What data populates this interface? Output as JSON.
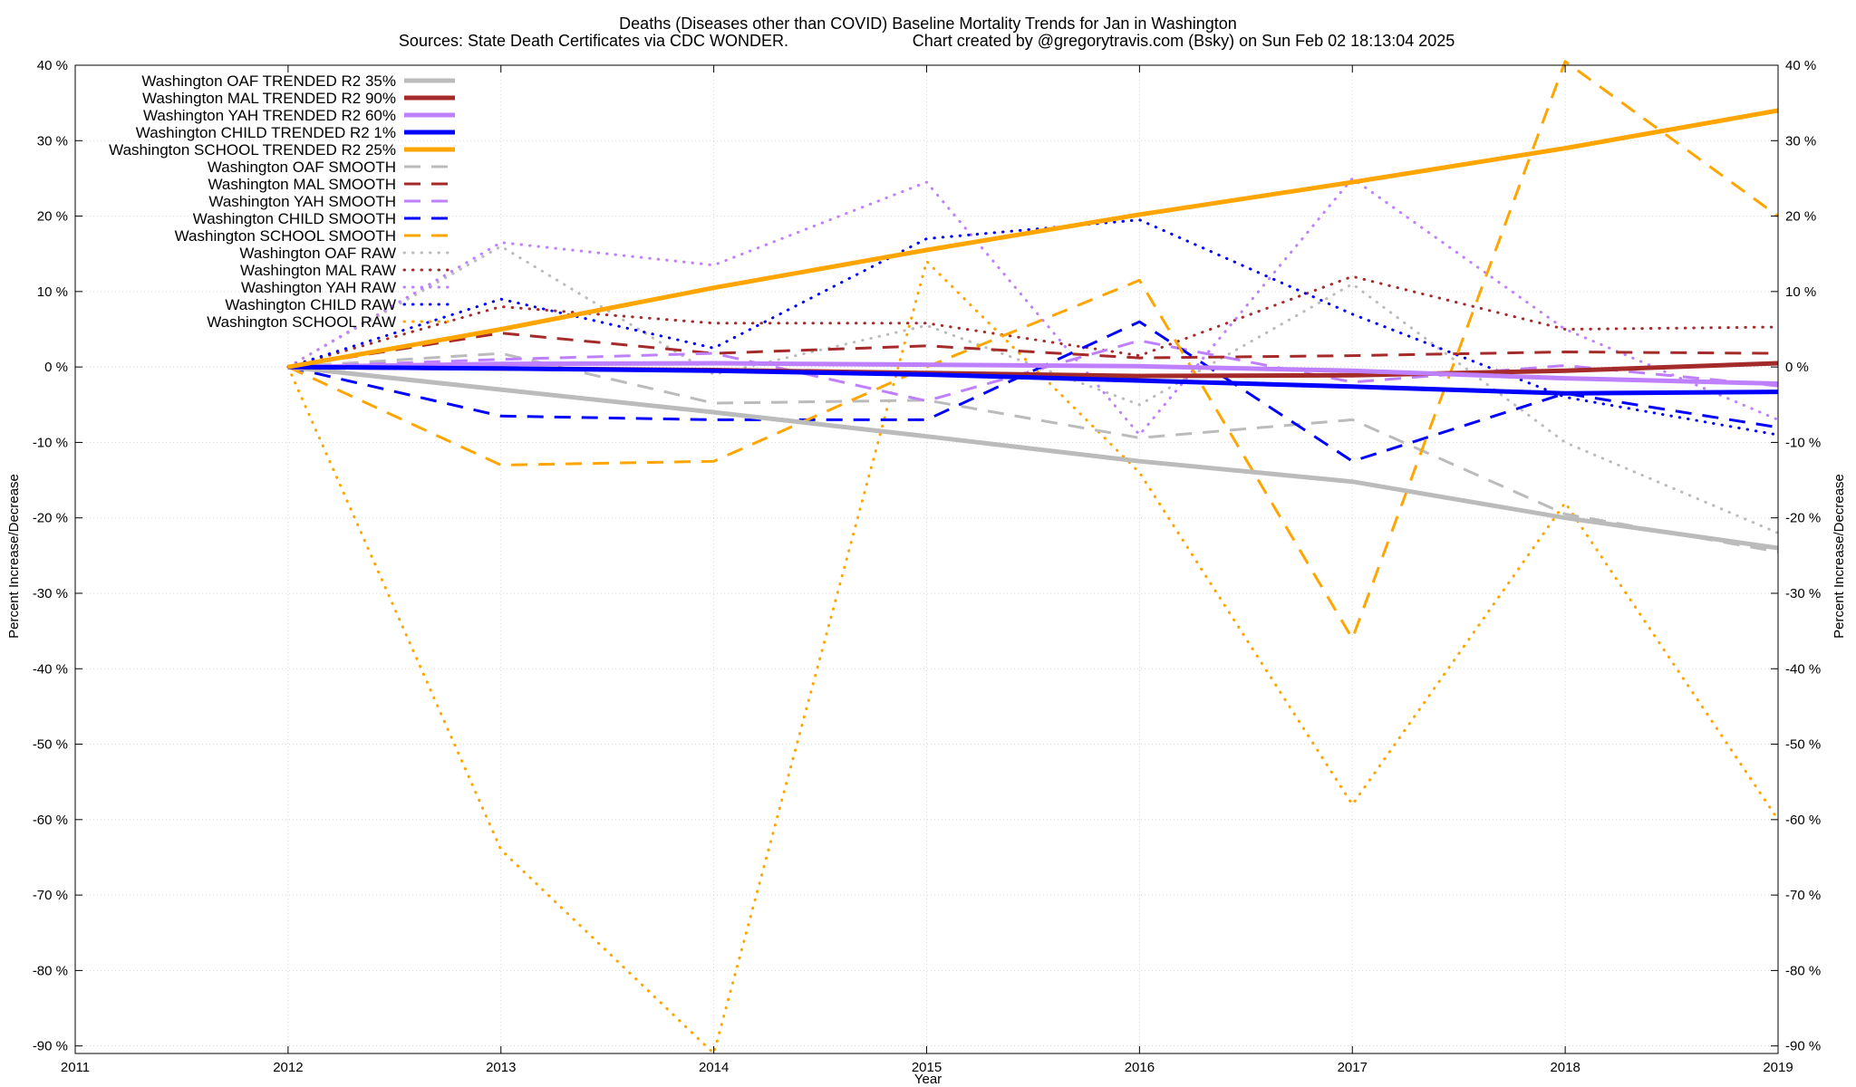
{
  "chart_data": {
    "type": "line",
    "title": "Deaths (Diseases other than COVID)  Baseline Mortality Trends for Jan in Washington",
    "subtitle_left": "Sources: State Death Certificates via CDC WONDER.",
    "subtitle_right": "Chart created by @gregorytravis.com (Bsky) on Sun Feb 02 18:13:04 2025",
    "xlabel": "Year",
    "ylabel_left": "Percent Increase/Decrease",
    "ylabel_right": "Percent Increase/Decrease",
    "xlim": [
      2011,
      2019
    ],
    "ylim": [
      -91,
      40
    ],
    "x_ticks": [
      2011,
      2012,
      2013,
      2014,
      2015,
      2016,
      2017,
      2018,
      2019
    ],
    "y_ticks": [
      {
        "value": 40,
        "label": "40 %"
      },
      {
        "value": 30,
        "label": "30 %"
      },
      {
        "value": 20,
        "label": "20 %"
      },
      {
        "value": 10,
        "label": "10 %"
      },
      {
        "value": 0,
        "label": "0 %"
      },
      {
        "value": -10,
        "label": "-10 %"
      },
      {
        "value": -20,
        "label": "-20 %"
      },
      {
        "value": -30,
        "label": "-30 %"
      },
      {
        "value": -40,
        "label": "-40 %"
      },
      {
        "value": -50,
        "label": "-50 %"
      },
      {
        "value": -60,
        "label": "-60 %"
      },
      {
        "value": -70,
        "label": "-70 %"
      },
      {
        "value": -80,
        "label": "-80 %"
      },
      {
        "value": -90,
        "label": "-90 %"
      }
    ],
    "grid": true,
    "legend_position": "top-left",
    "series": [
      {
        "name": "Washington OAF TRENDED R2  35%",
        "color": "#bbbbbb",
        "style": "solid",
        "x": [
          2012,
          2013,
          2014,
          2015,
          2016,
          2017,
          2018,
          2019
        ],
        "values": [
          0,
          -3,
          -6,
          -9.2,
          -12.5,
          -15.2,
          -20,
          -24
        ]
      },
      {
        "name": "Washington MAL TRENDED R2  90%",
        "color": "#a52a2a",
        "style": "solid",
        "x": [
          2012,
          2013,
          2014,
          2015,
          2016,
          2017,
          2018,
          2019
        ],
        "values": [
          0,
          -0.2,
          -0.4,
          -0.8,
          -1.2,
          -1.1,
          -0.5,
          0.5
        ]
      },
      {
        "name": "Washington YAH TRENDED R2  60%",
        "color": "#bf80ff",
        "style": "solid",
        "x": [
          2012,
          2013,
          2014,
          2015,
          2016,
          2017,
          2018,
          2019
        ],
        "values": [
          0,
          0.4,
          0.5,
          0.3,
          0.1,
          -0.5,
          -1.5,
          -2.2
        ]
      },
      {
        "name": "Washington CHILD TRENDED R2  1%",
        "color": "#0000ff",
        "style": "solid",
        "x": [
          2012,
          2013,
          2014,
          2015,
          2016,
          2017,
          2018,
          2019
        ],
        "values": [
          0,
          -0.2,
          -0.5,
          -1,
          -1.8,
          -2.6,
          -3.5,
          -3.3
        ]
      },
      {
        "name": "Washington SCHOOL TRENDED R2  25%",
        "color": "#ffa500",
        "style": "solid",
        "x": [
          2012,
          2013,
          2014,
          2015,
          2016,
          2017,
          2018,
          2019
        ],
        "values": [
          0,
          5,
          10.5,
          15.5,
          20.2,
          24.5,
          29,
          34
        ]
      },
      {
        "name": "Washington OAF SMOOTH",
        "color": "#bbbbbb",
        "style": "dash",
        "x": [
          2012,
          2013,
          2014,
          2015,
          2016,
          2017,
          2018,
          2019
        ],
        "values": [
          0,
          1.8,
          -4.8,
          -4.4,
          -9.4,
          -7,
          -19.5,
          -24.5
        ]
      },
      {
        "name": "Washington MAL SMOOTH",
        "color": "#a52a2a",
        "style": "dash",
        "x": [
          2012,
          2013,
          2014,
          2015,
          2016,
          2017,
          2018,
          2019
        ],
        "values": [
          0,
          4.5,
          1.8,
          2.8,
          1.2,
          1.5,
          2,
          1.8
        ]
      },
      {
        "name": "Washington YAH SMOOTH",
        "color": "#bf80ff",
        "style": "dash",
        "x": [
          2012,
          2013,
          2014,
          2015,
          2016,
          2017,
          2018,
          2019
        ],
        "values": [
          0,
          1,
          1.8,
          -4.5,
          3.5,
          -2,
          0.2,
          -2.5
        ]
      },
      {
        "name": "Washington CHILD SMOOTH",
        "color": "#0000ff",
        "style": "dash",
        "x": [
          2012,
          2013,
          2014,
          2015,
          2016,
          2017,
          2018,
          2019
        ],
        "values": [
          0,
          -6.5,
          -7,
          -7,
          6,
          -12.5,
          -3.5,
          -8
        ]
      },
      {
        "name": "Washington SCHOOL SMOOTH",
        "color": "#ffa500",
        "style": "dash",
        "x": [
          2012,
          2013,
          2014,
          2015,
          2016,
          2017,
          2018,
          2019
        ],
        "values": [
          0,
          -13,
          -12.5,
          0,
          11.5,
          -36,
          40.5,
          20
        ]
      },
      {
        "name": "Washington OAF RAW",
        "color": "#bbbbbb",
        "style": "dot",
        "x": [
          2012,
          2013,
          2014,
          2015,
          2016,
          2017,
          2018,
          2019
        ],
        "values": [
          0,
          16,
          -1,
          5.5,
          -5,
          11,
          -10,
          -22
        ]
      },
      {
        "name": "Washington MAL RAW",
        "color": "#a52a2a",
        "style": "dot",
        "x": [
          2012,
          2013,
          2014,
          2015,
          2016,
          2017,
          2018,
          2019
        ],
        "values": [
          0,
          8,
          5.8,
          5.8,
          1.5,
          12,
          5,
          5.3
        ]
      },
      {
        "name": "Washington YAH RAW",
        "color": "#bf80ff",
        "style": "dot",
        "x": [
          2012,
          2013,
          2014,
          2015,
          2016,
          2017,
          2018,
          2019
        ],
        "values": [
          0,
          16.5,
          13.5,
          24.5,
          -9,
          25,
          5,
          -7
        ]
      },
      {
        "name": "Washington CHILD RAW",
        "color": "#0000ff",
        "style": "dot",
        "x": [
          2012,
          2013,
          2014,
          2015,
          2016,
          2017,
          2018,
          2019
        ],
        "values": [
          0,
          9,
          2.5,
          17,
          19.5,
          7,
          -4,
          -9
        ]
      },
      {
        "name": "Washington SCHOOL RAW",
        "color": "#ffa500",
        "style": "dot",
        "x": [
          2012,
          2013,
          2014,
          2015,
          2016,
          2017,
          2018,
          2019
        ],
        "values": [
          0,
          -64,
          -91,
          14,
          -14,
          -58,
          -18,
          -60
        ]
      }
    ]
  }
}
